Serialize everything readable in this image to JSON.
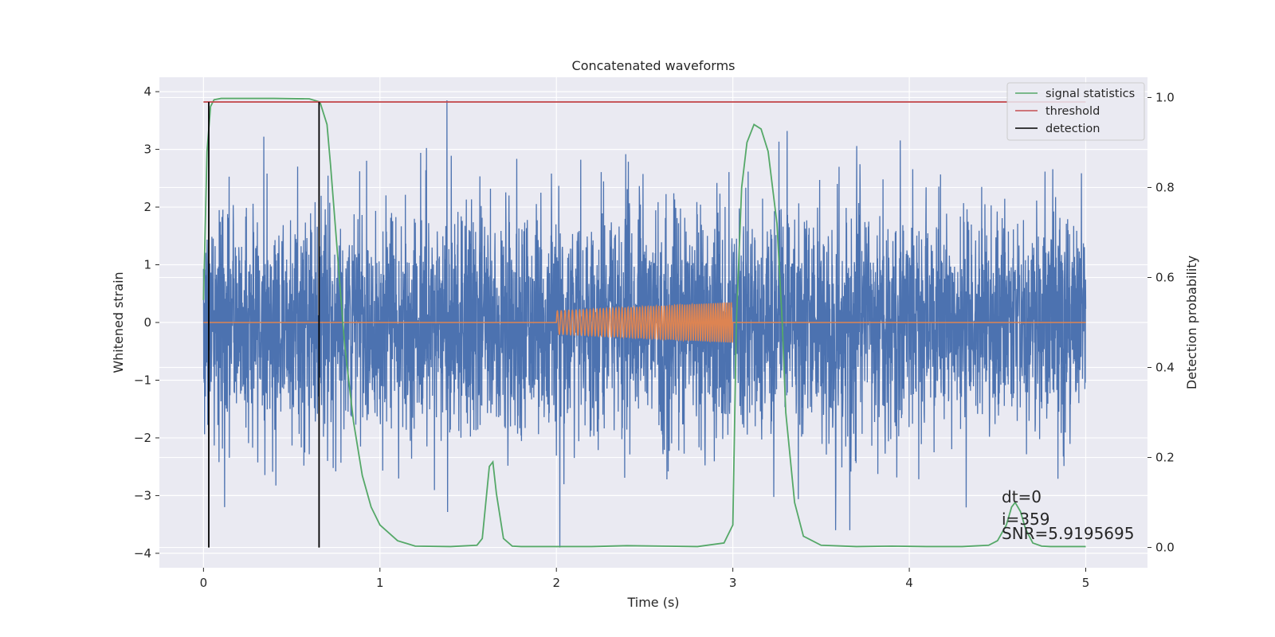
{
  "chart_data": {
    "type": "line",
    "title": "Concatenated waveforms",
    "xlabel": "Time (s)",
    "ylabel": "Whitened strain",
    "y2label": "Detection probability",
    "xlim": [
      -0.25,
      5.35
    ],
    "ylim": [
      -4.25,
      4.25
    ],
    "y2lim": [
      -0.045,
      1.045
    ],
    "xticks": [
      0,
      1,
      2,
      3,
      4,
      5
    ],
    "yticks": [
      -4,
      -3,
      -2,
      -1,
      0,
      1,
      2,
      3,
      4
    ],
    "y2ticks": [
      0.0,
      0.2,
      0.4,
      0.6,
      0.8,
      1.0
    ],
    "y2tick_labels": [
      "0.0",
      "0.2",
      "0.4",
      "0.6",
      "0.8",
      "1.0"
    ],
    "grid": true,
    "legend_position": "top-right",
    "legend": [
      "signal statistics",
      "threshold",
      "detection"
    ],
    "series": [
      {
        "name": "",
        "axis": "left",
        "color": "#4c72b0",
        "kind": "noise",
        "x_range": [
          0,
          5
        ],
        "amplitude_std": 1.0,
        "notable_values": [
          {
            "x": 1.38,
            "y": 3.85
          },
          {
            "x": 2.02,
            "y": -3.9
          },
          {
            "x": 0.12,
            "y": -3.2
          }
        ]
      },
      {
        "name": "",
        "axis": "left",
        "color": "#dd8452",
        "kind": "chirp",
        "x_range": [
          0,
          5
        ],
        "chirp_start": 2.0,
        "chirp_end": 3.0,
        "amplitude_start": 0.2,
        "amplitude_end": 0.35
      },
      {
        "name": "signal statistics",
        "axis": "right",
        "color": "#55a868",
        "x": [
          0,
          0.02,
          0.04,
          0.06,
          0.1,
          0.2,
          0.4,
          0.6,
          0.66,
          0.7,
          0.72,
          0.75,
          0.8,
          0.85,
          0.9,
          0.95,
          1.0,
          1.1,
          1.2,
          1.4,
          1.55,
          1.58,
          1.6,
          1.62,
          1.64,
          1.66,
          1.7,
          1.75,
          1.8,
          2.0,
          2.2,
          2.4,
          2.6,
          2.8,
          2.95,
          3.0,
          3.02,
          3.05,
          3.08,
          3.12,
          3.16,
          3.2,
          3.25,
          3.28,
          3.3,
          3.35,
          3.4,
          3.5,
          3.7,
          3.9,
          4.1,
          4.3,
          4.45,
          4.5,
          4.55,
          4.58,
          4.6,
          4.63,
          4.66,
          4.7,
          4.75,
          4.8,
          5.0
        ],
        "values": [
          0.55,
          0.88,
          0.98,
          0.995,
          0.998,
          0.998,
          0.998,
          0.997,
          0.99,
          0.94,
          0.85,
          0.7,
          0.45,
          0.28,
          0.16,
          0.09,
          0.05,
          0.015,
          0.003,
          0.002,
          0.005,
          0.02,
          0.1,
          0.18,
          0.19,
          0.12,
          0.02,
          0.003,
          0.002,
          0.002,
          0.002,
          0.004,
          0.003,
          0.002,
          0.01,
          0.05,
          0.5,
          0.8,
          0.9,
          0.94,
          0.93,
          0.88,
          0.72,
          0.5,
          0.3,
          0.1,
          0.025,
          0.005,
          0.002,
          0.003,
          0.002,
          0.002,
          0.005,
          0.015,
          0.05,
          0.09,
          0.1,
          0.08,
          0.04,
          0.01,
          0.003,
          0.002,
          0.002
        ]
      },
      {
        "name": "threshold",
        "axis": "right",
        "color": "#c44e52",
        "x": [
          0,
          5
        ],
        "values": [
          0.99,
          0.99
        ]
      },
      {
        "name": "detection",
        "axis": "right",
        "color": "#000000",
        "kind": "vlines",
        "x": [
          0.03,
          0.655
        ],
        "y_range": [
          0.0,
          0.99
        ]
      }
    ],
    "annotations": [
      "dt=0",
      "i=359",
      "SNR=5.9195695"
    ],
    "colors": {
      "plot_bg": "#eaeaf2",
      "grid": "#ffffff"
    }
  }
}
